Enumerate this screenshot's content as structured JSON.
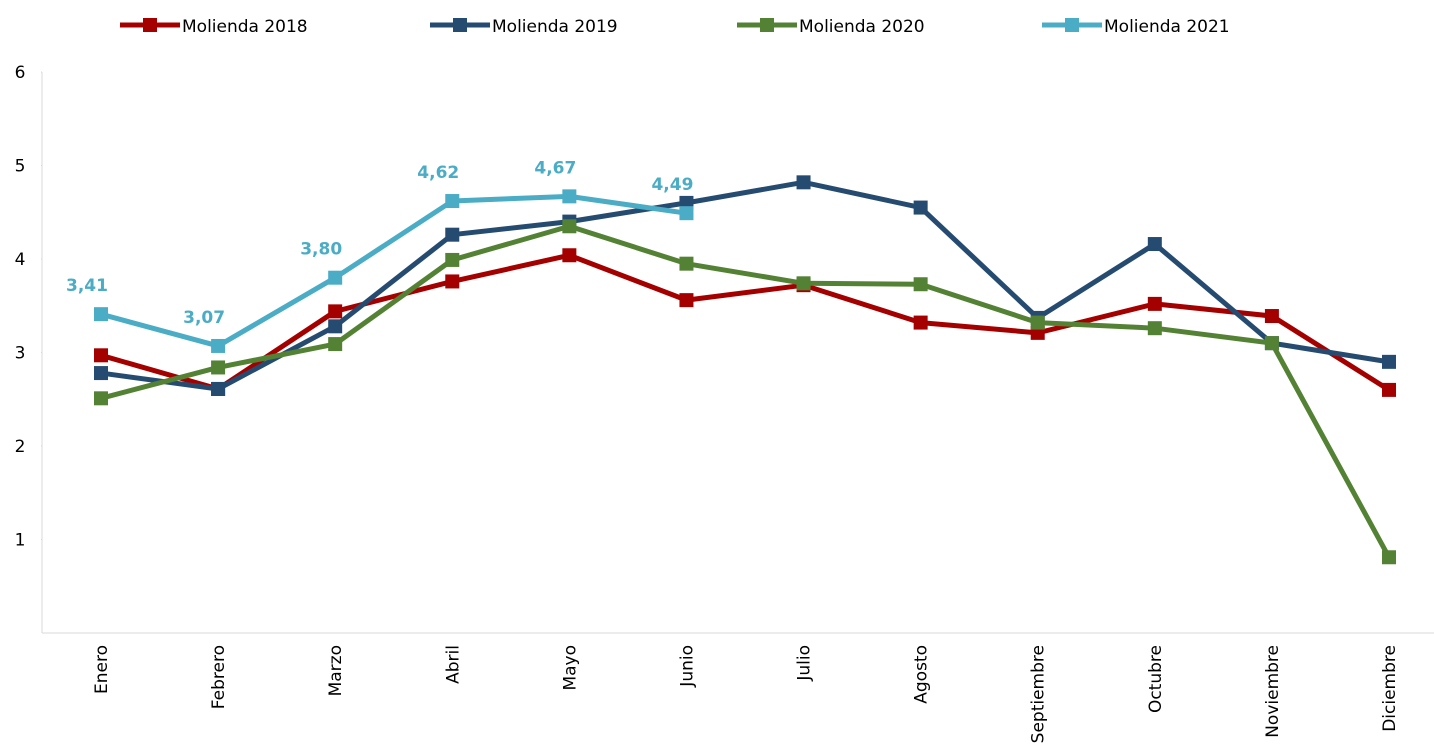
{
  "chart_data": {
    "type": "line",
    "categories": [
      "Enero",
      "Febrero",
      "Marzo",
      "Abril",
      "Mayo",
      "Junio",
      "Julio",
      "Agosto",
      "Septiembre",
      "Octubre",
      "Noviembre",
      "Diciembre"
    ],
    "series": [
      {
        "name": "Molienda 2018",
        "color": "#a50000",
        "values": [
          2.97,
          2.61,
          3.44,
          3.76,
          4.04,
          3.56,
          3.72,
          3.32,
          3.21,
          3.52,
          3.39,
          2.6
        ]
      },
      {
        "name": "Molienda 2019",
        "color": "#264b70",
        "values": [
          2.78,
          2.61,
          3.28,
          4.26,
          4.4,
          4.6,
          4.82,
          4.55,
          3.37,
          4.16,
          3.1,
          2.9
        ]
      },
      {
        "name": "Molienda 2020",
        "color": "#548235",
        "values": [
          2.51,
          2.84,
          3.09,
          3.99,
          4.35,
          3.95,
          3.74,
          3.73,
          3.32,
          3.26,
          3.1,
          0.81
        ]
      },
      {
        "name": "Molienda 2021",
        "color": "#4bacc6",
        "values": [
          3.41,
          3.07,
          3.8,
          4.62,
          4.67,
          4.49,
          null,
          null,
          null,
          null,
          null,
          null
        ],
        "value_labels": [
          "3,41",
          "3,07",
          "3,80",
          "4,62",
          "4,67",
          "4,49",
          null,
          null,
          null,
          null,
          null,
          null
        ]
      }
    ],
    "ylim": [
      0,
      6
    ],
    "yticks": [
      1,
      2,
      3,
      4,
      5,
      6
    ],
    "legend": "top"
  }
}
